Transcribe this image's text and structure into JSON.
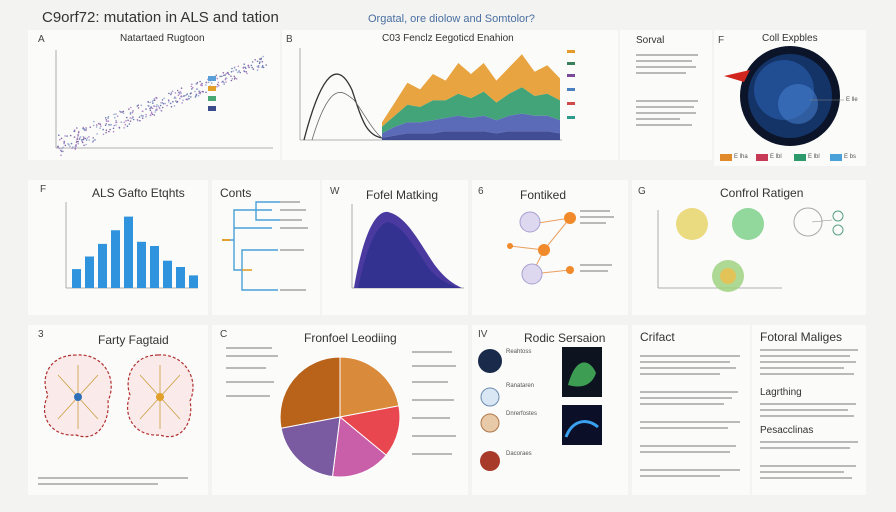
{
  "header": {
    "title": "C9orf72: mutation in ALS and tation",
    "subtitle": "Orgatal, ore diolow and Somtolor?"
  },
  "panels": {
    "A": {
      "letter": "A",
      "title": "Natartaed Rugtoon"
    },
    "B": {
      "letter": "B",
      "title": "C03 Fenclz Eegoticd Enahion"
    },
    "C": {
      "title": "Sorval"
    },
    "D": {
      "letter": "F",
      "title": "Coll Expbles",
      "legend": [
        "E lha",
        "E lbl",
        "E lbl",
        "E bs"
      ],
      "arrow_label": "E lle"
    },
    "E": {
      "letter": "F",
      "title": "ALS Gafto Etqhts"
    },
    "F": {
      "title": "Conts"
    },
    "G": {
      "letter": "W",
      "title": "Fofel Matking"
    },
    "H": {
      "letter": "6",
      "title": "Fontiked"
    },
    "I": {
      "letter": "G",
      "title": "Confrol Ratigen"
    },
    "J": {
      "letter": "3",
      "title": "Farty Fagtaid"
    },
    "K": {
      "letter": "C",
      "title": "Fronfoel Leodiing"
    },
    "L": {
      "letter": "IV",
      "title": "Rodic Sersaion",
      "items": [
        "Reahtoss",
        "Ranataren",
        "Dnrerfostes",
        "Dacoraes"
      ]
    },
    "M": {
      "title": "Crifact"
    },
    "N": {
      "title": "Fotoral Maliges",
      "subheads": [
        "Lagrthing",
        "Pesacclinas"
      ]
    }
  },
  "chart_data": [
    {
      "type": "scatter",
      "title": "Natartaed Rugtoon",
      "trend": "increasing"
    },
    {
      "type": "area",
      "title": "C03 Fenclz Eegoticd Enahion",
      "series": [
        {
          "values": [
            2,
            6,
            10,
            8,
            12,
            9,
            14,
            11,
            13,
            10,
            12,
            15,
            11,
            13,
            10
          ]
        },
        {
          "values": [
            3,
            5,
            8,
            7,
            9,
            8,
            10,
            9,
            11,
            8,
            10,
            12,
            9,
            10,
            9
          ]
        },
        {
          "values": [
            2,
            4,
            5,
            5,
            6,
            6,
            7,
            6,
            7,
            6,
            7,
            8,
            7,
            7,
            6
          ]
        },
        {
          "values": [
            1,
            2,
            3,
            3,
            3,
            4,
            4,
            4,
            4,
            3,
            4,
            4,
            4,
            4,
            3
          ]
        }
      ]
    },
    {
      "type": "bar",
      "title": "ALS Gafto Etqhts",
      "values": [
        18,
        30,
        42,
        55,
        68,
        44,
        40,
        26,
        20,
        12
      ],
      "ylim": [
        0,
        80
      ]
    },
    {
      "type": "pie",
      "title": "Fronfoel Leodiing",
      "values": [
        22,
        14,
        16,
        20,
        28
      ]
    }
  ]
}
